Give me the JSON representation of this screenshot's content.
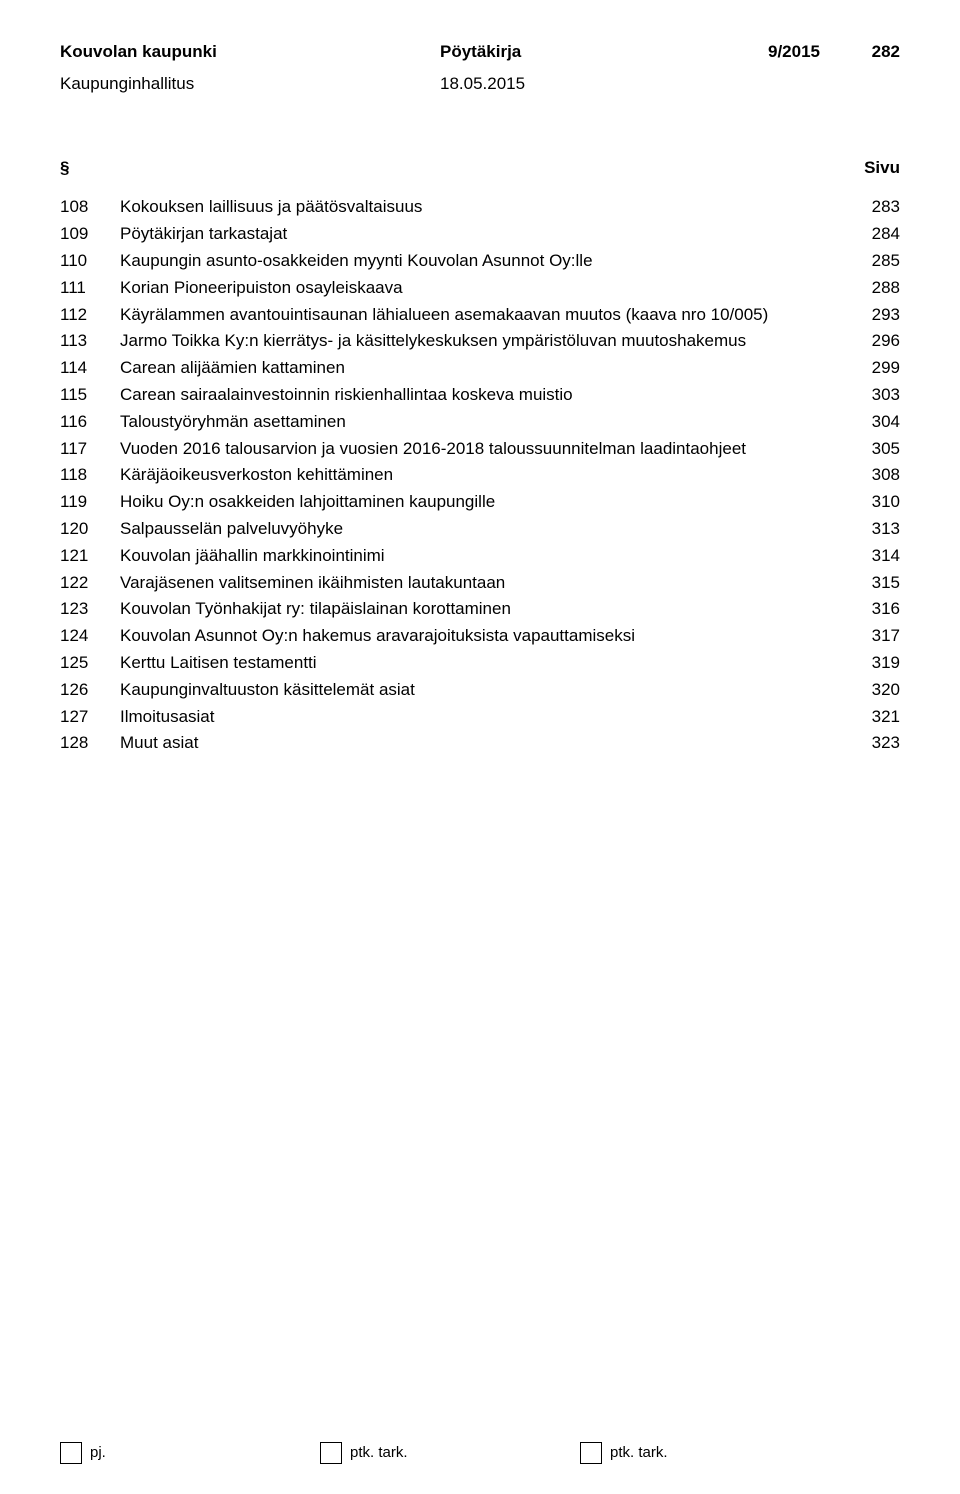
{
  "header": {
    "municipality": "Kouvolan kaupunki",
    "doc_type": "Pöytäkirja",
    "meeting_no": "9/2015",
    "page_no": "282",
    "body": "Kaupunginhallitus",
    "date": "18.05.2015"
  },
  "columns": {
    "section": "§",
    "page": "Sivu"
  },
  "toc": [
    {
      "n": "108",
      "t": "Kokouksen laillisuus ja päätösvaltaisuus",
      "p": "283"
    },
    {
      "n": "109",
      "t": "Pöytäkirjan tarkastajat",
      "p": "284"
    },
    {
      "n": "110",
      "t": "Kaupungin asunto-osakkeiden myynti Kouvolan Asunnot Oy:lle",
      "p": "285"
    },
    {
      "n": "111",
      "t": "Korian Pioneeripuiston osayleiskaava",
      "p": "288"
    },
    {
      "n": "112",
      "t": "Käyrälammen avantouintisaunan lähialueen asemakaavan muutos (kaava nro 10/005)",
      "p": "293"
    },
    {
      "n": "113",
      "t": "Jarmo Toikka Ky:n kierrätys- ja käsittelykeskuksen ympäristöluvan muutoshakemus",
      "p": "296"
    },
    {
      "n": "114",
      "t": "Carean alijäämien kattaminen",
      "p": "299"
    },
    {
      "n": "115",
      "t": "Carean sairaalainvestoinnin riskienhallintaa koskeva muistio",
      "p": "303"
    },
    {
      "n": "116",
      "t": "Taloustyöryhmän asettaminen",
      "p": "304"
    },
    {
      "n": "117",
      "t": "Vuoden 2016 talousarvion ja vuosien 2016-2018 taloussuunnitelman laadintaohjeet",
      "p": "305"
    },
    {
      "n": "118",
      "t": "Käräjäoikeusverkoston kehittäminen",
      "p": "308"
    },
    {
      "n": "119",
      "t": "Hoiku Oy:n osakkeiden lahjoittaminen kaupungille",
      "p": "310"
    },
    {
      "n": "120",
      "t": "Salpausselän palveluvyöhyke",
      "p": "313"
    },
    {
      "n": "121",
      "t": "Kouvolan jäähallin markkinointinimi",
      "p": "314"
    },
    {
      "n": "122",
      "t": "Varajäsenen valitseminen ikäihmisten lautakuntaan",
      "p": "315"
    },
    {
      "n": "123",
      "t": "Kouvolan Työnhakijat ry: tilapäislainan korottaminen",
      "p": "316"
    },
    {
      "n": "124",
      "t": "Kouvolan Asunnot Oy:n hakemus aravarajoituksista vapauttamiseksi",
      "p": "317"
    },
    {
      "n": "125",
      "t": "Kerttu Laitisen testamentti",
      "p": "319"
    },
    {
      "n": "126",
      "t": "Kaupunginvaltuuston käsittelemät asiat",
      "p": "320"
    },
    {
      "n": "127",
      "t": "Ilmoitusasiat",
      "p": "321"
    },
    {
      "n": "128",
      "t": "Muut asiat",
      "p": "323"
    }
  ],
  "footer": {
    "pj": "pj.",
    "ptk1": "ptk. tark.",
    "ptk2": "ptk. tark."
  }
}
